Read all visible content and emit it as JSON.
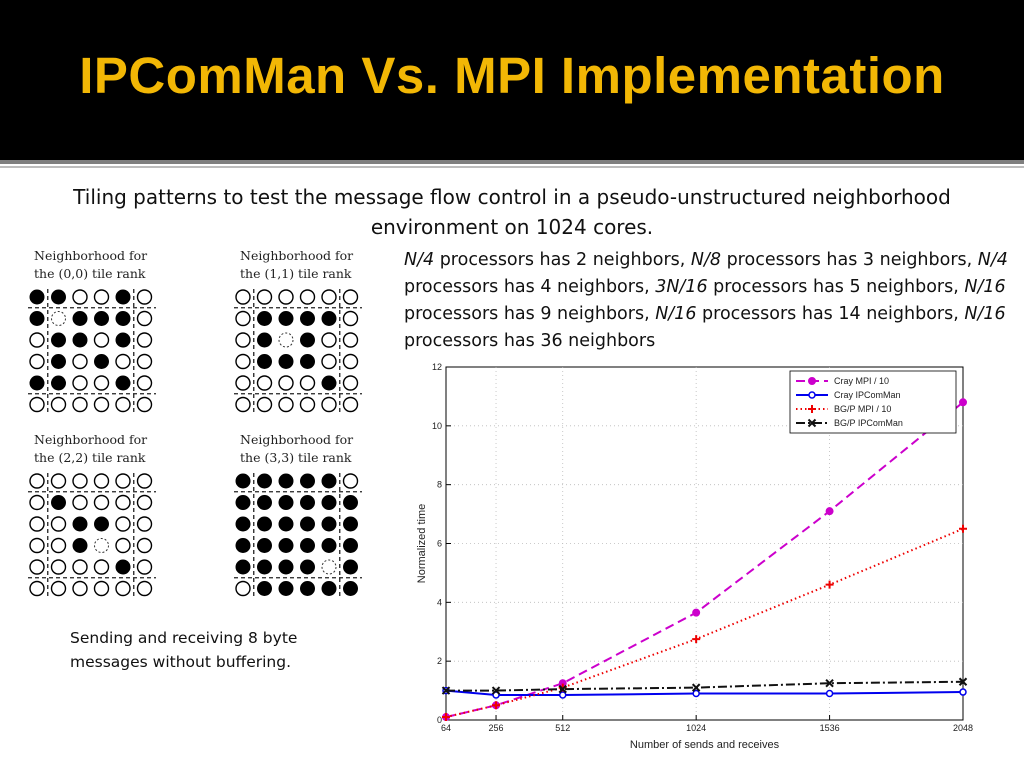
{
  "slide": {
    "title": "IPComMan Vs. MPI Implementation",
    "subtitle": "Tiling patterns to test the message flow control in a pseudo-unstructured neighborhood environment  on 1024 cores.",
    "processor_groups": [
      {
        "count": "N/4",
        "text": " processors has 2 neighbors, "
      },
      {
        "count": "N/8",
        "text": " processors has 3 neighbors, "
      },
      {
        "count": "N/4",
        "text": " processors has 4 neighbors, "
      },
      {
        "count": "3N/16",
        "text": " processors has 5 neighbors, "
      },
      {
        "count": "N/16",
        "text": " processors has 9 neighbors, "
      },
      {
        "count": "N/16",
        "text": " processors has 14 neighbors, "
      },
      {
        "count": "N/16",
        "text": " processors has 36 neighbors"
      }
    ],
    "note": "Sending and receiving 8 byte messages without buffering.",
    "colors": {
      "title": "#f2b705",
      "header_bg": "#000000"
    }
  },
  "tiles": [
    {
      "caption_line1": "Neighborhood for",
      "caption_line2": "the (0,0) tile rank",
      "grid": [
        "FFOOFO",
        "FDFFFO",
        "OFFOFO",
        "OFOFOO",
        "FFOOFO",
        "OOOOOO"
      ]
    },
    {
      "caption_line1": "Neighborhood for",
      "caption_line2": "the (1,1) tile rank",
      "grid": [
        "OOOOOO",
        "OFFFFO",
        "OFDFOO",
        "OFFFOO",
        "OOOOFO",
        "OOOOOO"
      ]
    },
    {
      "caption_line1": "Neighborhood for",
      "caption_line2": "the (2,2) tile rank",
      "grid": [
        "OOOOOO",
        "OFOOOO",
        "OOFFOO",
        "OOFDOO",
        "OOOOFO",
        "OOOOOO"
      ]
    },
    {
      "caption_line1": "Neighborhood for",
      "caption_line2": "the (3,3) tile rank",
      "grid": [
        "FFFFFO",
        "FFFFFF",
        "FFFFFF",
        "FFFFFF",
        "FFFFDF",
        "OFFFFF"
      ]
    }
  ],
  "chart_data": {
    "type": "line",
    "xlabel": "Number of sends and receives",
    "ylabel": "Normalized time",
    "x": [
      64,
      256,
      512,
      1024,
      1536,
      2048
    ],
    "x_tick_labels": [
      "64",
      "256",
      "512",
      "1024",
      "1536",
      "2048"
    ],
    "y_ticks": [
      0,
      2,
      4,
      6,
      8,
      10,
      12
    ],
    "ylim": [
      0,
      12
    ],
    "grid": true,
    "legend_position": "top-right",
    "series": [
      {
        "name": "Cray MPI / 10",
        "values": [
          0.1,
          0.5,
          1.25,
          3.65,
          7.1,
          10.8
        ],
        "color": "#cc00cc",
        "dash": "dashed",
        "marker": "dot"
      },
      {
        "name": "Cray IPComMan",
        "values": [
          1.0,
          0.85,
          0.85,
          0.9,
          0.9,
          0.95
        ],
        "color": "#0000ee",
        "dash": "solid",
        "marker": "circle"
      },
      {
        "name": "BG/P MPI / 10",
        "values": [
          0.1,
          0.5,
          1.1,
          2.75,
          4.6,
          6.5
        ],
        "color": "#ee0000",
        "dash": "dotted",
        "marker": "plus"
      },
      {
        "name": "BG/P IPComMan",
        "values": [
          1.0,
          1.0,
          1.05,
          1.1,
          1.25,
          1.3
        ],
        "color": "#111111",
        "dash": "dashdot",
        "marker": "x"
      }
    ]
  }
}
